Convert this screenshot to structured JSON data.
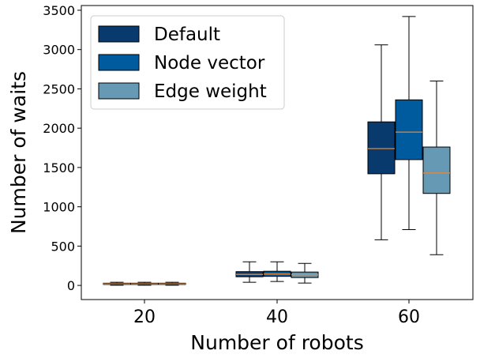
{
  "chart_data": {
    "type": "box",
    "xlabel": "Number of robots",
    "ylabel": "Number of waits",
    "categories": [
      "20",
      "40",
      "60"
    ],
    "ylim": [
      -180,
      3560
    ],
    "yticks": [
      0,
      500,
      1000,
      1500,
      2000,
      2500,
      3000,
      3500
    ],
    "legend_position": "top-left",
    "median_color": "#e8883a",
    "series": [
      {
        "name": "Default",
        "color": "#083a6e",
        "boxes": [
          {
            "min": 2,
            "q1": 12,
            "median": 20,
            "q3": 28,
            "max": 40
          },
          {
            "min": 40,
            "q1": 110,
            "median": 140,
            "q3": 175,
            "max": 300
          },
          {
            "min": 580,
            "q1": 1420,
            "median": 1740,
            "q3": 2080,
            "max": 3060
          }
        ]
      },
      {
        "name": "Node vector",
        "color": "#005a9e",
        "boxes": [
          {
            "min": 2,
            "q1": 12,
            "median": 20,
            "q3": 28,
            "max": 40
          },
          {
            "min": 50,
            "q1": 115,
            "median": 145,
            "q3": 180,
            "max": 300
          },
          {
            "min": 710,
            "q1": 1600,
            "median": 1950,
            "q3": 2360,
            "max": 3420
          }
        ]
      },
      {
        "name": "Edge weight",
        "color": "#6699b4",
        "boxes": [
          {
            "min": 2,
            "q1": 12,
            "median": 20,
            "q3": 28,
            "max": 40
          },
          {
            "min": 30,
            "q1": 100,
            "median": 135,
            "q3": 170,
            "max": 280
          },
          {
            "min": 390,
            "q1": 1170,
            "median": 1430,
            "q3": 1760,
            "max": 2600
          }
        ]
      }
    ]
  }
}
